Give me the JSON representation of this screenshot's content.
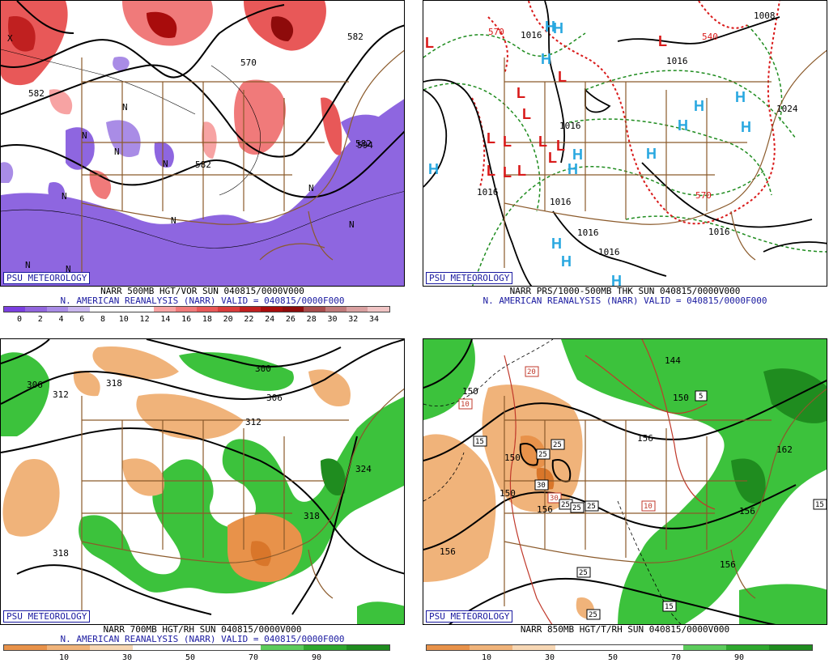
{
  "panels": {
    "tl": {
      "badge": "PSU METEOROLOGY",
      "line1": "NARR 500MB HGT/VOR SUN 040815/0000V000",
      "line2": "N. AMERICAN REANALYSIS (NARR) VALID = 040815/0000F000",
      "contour_labels": [
        "582",
        "570",
        "582",
        "582",
        "582",
        "594"
      ],
      "center_marks": [
        "X",
        "N",
        "N",
        "N",
        "N",
        "N",
        "N",
        "N",
        "N",
        "N",
        "N"
      ],
      "scale": {
        "ticks": [
          "0",
          "2",
          "4",
          "6",
          "8",
          "10",
          "12",
          "14",
          "16",
          "18",
          "20",
          "22",
          "24",
          "26",
          "28",
          "30",
          "32",
          "34"
        ],
        "colors": [
          "#7b3fe0",
          "#9266dd",
          "#a98ce6",
          "#c9b7ee",
          "#ffffff",
          "#ffffff",
          "#ffffff",
          "#f7a3a3",
          "#f07a7a",
          "#e85858",
          "#d93b3b",
          "#c02020",
          "#a80c0c",
          "#8e0b0b",
          "#a84c4c",
          "#c07a7a",
          "#d9a0a0",
          "#f0c4c4"
        ]
      }
    },
    "tr": {
      "badge": "PSU METEOROLOGY",
      "line1": "NARR PRS/1000-500MB THK SUN 040815/0000V000",
      "line2": "N. AMERICAN REANALYSIS (NARR) VALID = 040815/0000F000",
      "contour_labels": [
        "1016",
        "1016",
        "1016",
        "1016",
        "1016",
        "1016",
        "1016",
        "1016",
        "1024",
        "1008"
      ],
      "thickness_labels": [
        "570",
        "540",
        "570"
      ],
      "high_marks": [
        "H",
        "H",
        "H",
        "H",
        "H",
        "H",
        "H",
        "H",
        "H",
        "H",
        "H",
        "H",
        "H",
        "H"
      ],
      "low_marks": [
        "L",
        "L",
        "L",
        "L",
        "L",
        "L",
        "L",
        "L",
        "L",
        "L",
        "L",
        "L",
        "L"
      ]
    },
    "bl": {
      "badge": "PSU METEOROLOGY",
      "line1": "NARR 700MB HGT/RH SUN 040815/0000V000",
      "line2": "N. AMERICAN REANALYSIS (NARR) VALID = 040815/0000F000",
      "contour_labels": [
        "306",
        "312",
        "318",
        "300",
        "306",
        "312",
        "324",
        "318",
        "318"
      ],
      "scale": {
        "ticks": [
          "10",
          "30",
          "50",
          "70",
          "90"
        ],
        "colors": [
          "#e8924a",
          "#f0b37a",
          "#f7d7b4",
          "#ffffff",
          "#ffffff",
          "#ffffff",
          "#5ccc5c",
          "#2ea82e",
          "#1f8c1f"
        ]
      }
    },
    "br": {
      "badge": "PSU METEOROLOGY",
      "line1": "NARR 850MB HGT/T/RH SUN 040815/0000V000",
      "contour_labels": [
        "150",
        "156",
        "144",
        "150",
        "156",
        "162",
        "150",
        "150",
        "156",
        "156",
        "156"
      ],
      "temp_labels": [
        "20",
        "10",
        "15",
        "25",
        "25",
        "30",
        "30",
        "25",
        "25",
        "25",
        "10",
        "25",
        "25",
        "15",
        "5",
        "15"
      ],
      "scale": {
        "ticks": [
          "10",
          "30",
          "50",
          "70",
          "90"
        ],
        "colors": [
          "#e8924a",
          "#f0b37a",
          "#f7d7b4",
          "#ffffff",
          "#ffffff",
          "#ffffff",
          "#5ccc5c",
          "#2ea82e",
          "#1f8c1f"
        ]
      }
    }
  }
}
